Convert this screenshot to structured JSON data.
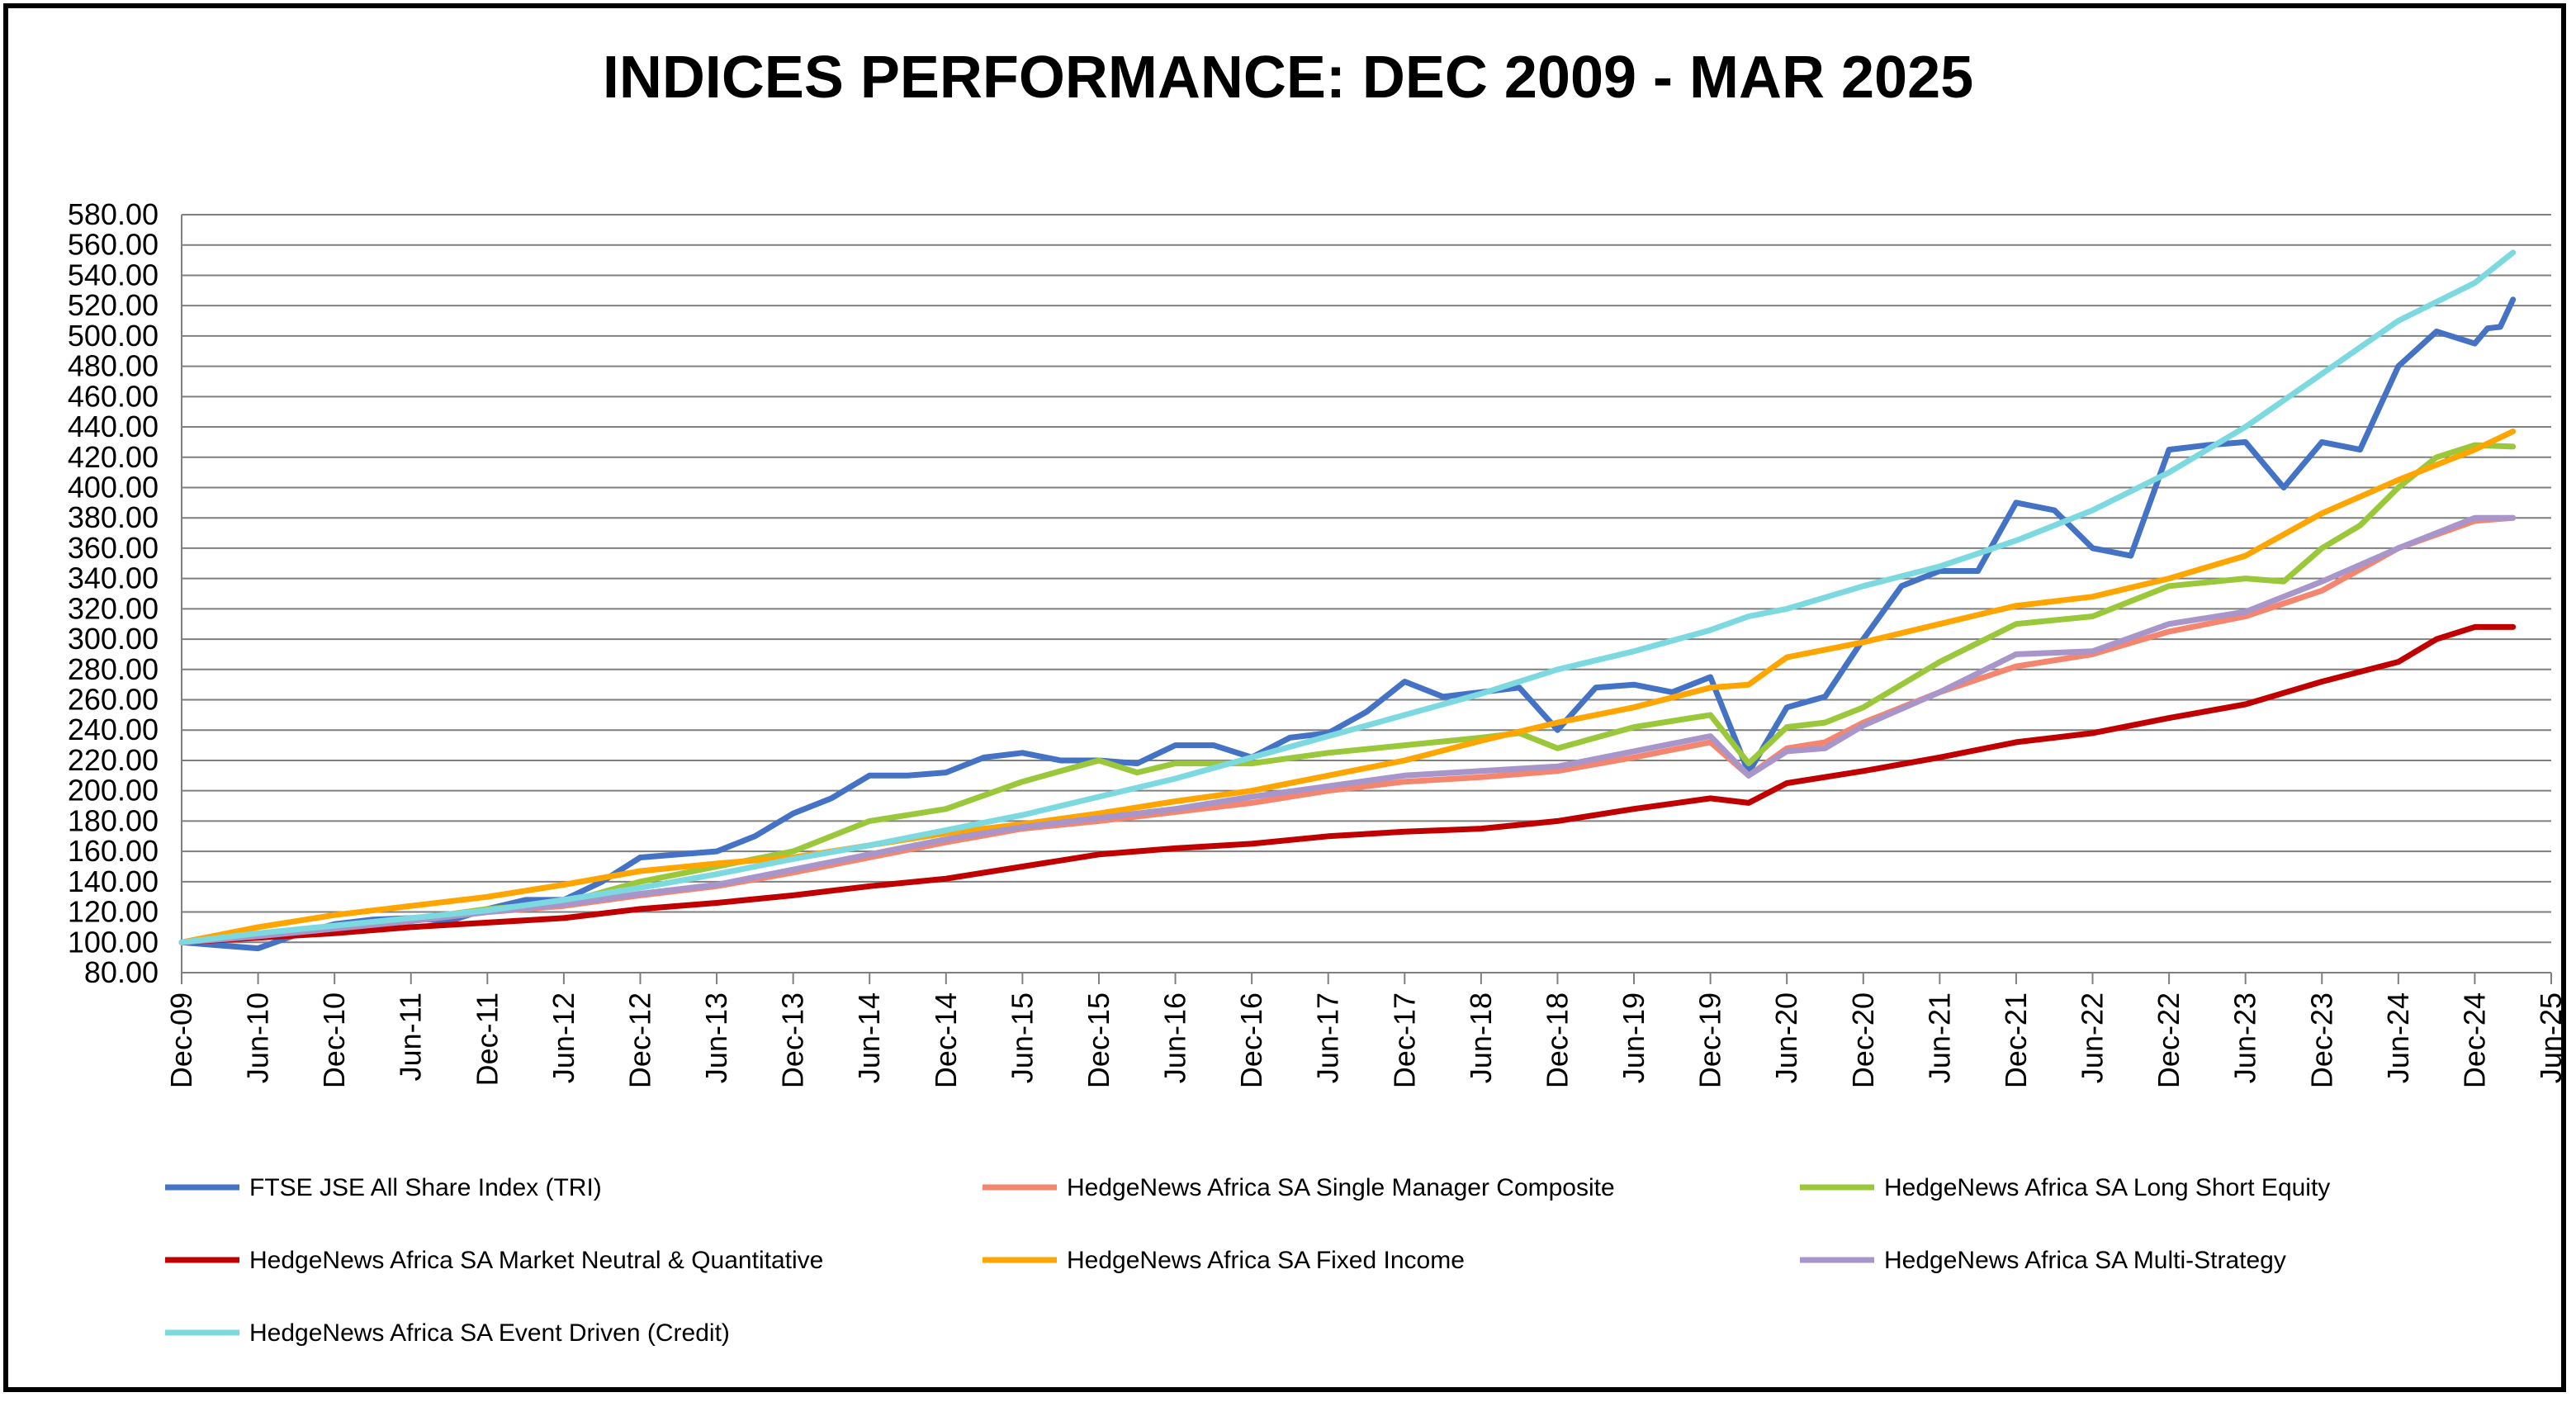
{
  "chart_data": {
    "type": "line",
    "title": "INDICES PERFORMANCE: DEC 2009 - MAR 2025",
    "xlabel": "",
    "ylabel": "",
    "ylim": [
      80,
      580
    ],
    "yticks": [
      "580.00",
      "560.00",
      "540.00",
      "520.00",
      "500.00",
      "480.00",
      "460.00",
      "440.00",
      "420.00",
      "400.00",
      "380.00",
      "360.00",
      "340.00",
      "320.00",
      "300.00",
      "280.00",
      "260.00",
      "240.00",
      "220.00",
      "200.00",
      "180.00",
      "160.00",
      "140.00",
      "120.00",
      "100.00",
      "80.00"
    ],
    "xticks": [
      "Dec-09",
      "Jun-10",
      "Dec-10",
      "Jun-11",
      "Dec-11",
      "Jun-12",
      "Dec-12",
      "Jun-13",
      "Dec-13",
      "Jun-14",
      "Dec-14",
      "Jun-15",
      "Dec-15",
      "Jun-16",
      "Dec-16",
      "Jun-17",
      "Dec-17",
      "Jun-18",
      "Dec-18",
      "Jun-19",
      "Dec-19",
      "Jun-20",
      "Dec-20",
      "Jun-21",
      "Dec-21",
      "Jun-22",
      "Dec-22",
      "Jun-23",
      "Dec-23",
      "Jun-24",
      "Dec-24",
      "Jun-25"
    ],
    "grid": true,
    "legend_position": "bottom",
    "series": [
      {
        "name": "FTSE JSE All Share Index (TRI)",
        "color": "#4472C4",
        "points": [
          [
            "Dec-09",
            100
          ],
          [
            "Mar-10",
            98
          ],
          [
            "Jun-10",
            96
          ],
          [
            "Sep-10",
            105
          ],
          [
            "Dec-10",
            112
          ],
          [
            "Mar-11",
            115
          ],
          [
            "Jun-11",
            116
          ],
          [
            "Sep-11",
            114
          ],
          [
            "Dec-11",
            122
          ],
          [
            "Mar-12",
            128
          ],
          [
            "Jun-12",
            128
          ],
          [
            "Sep-12",
            140
          ],
          [
            "Dec-12",
            156
          ],
          [
            "Mar-13",
            158
          ],
          [
            "Jun-13",
            160
          ],
          [
            "Sep-13",
            170
          ],
          [
            "Dec-13",
            185
          ],
          [
            "Mar-14",
            195
          ],
          [
            "Jun-14",
            210
          ],
          [
            "Sep-14",
            210
          ],
          [
            "Dec-14",
            212
          ],
          [
            "Mar-15",
            222
          ],
          [
            "Jun-15",
            225
          ],
          [
            "Sep-15",
            220
          ],
          [
            "Dec-15",
            220
          ],
          [
            "Mar-16",
            218
          ],
          [
            "Jun-16",
            230
          ],
          [
            "Sep-16",
            230
          ],
          [
            "Dec-16",
            222
          ],
          [
            "Mar-17",
            235
          ],
          [
            "Jun-17",
            238
          ],
          [
            "Sep-17",
            252
          ],
          [
            "Dec-17",
            272
          ],
          [
            "Mar-18",
            262
          ],
          [
            "Jun-18",
            265
          ],
          [
            "Sep-18",
            268
          ],
          [
            "Dec-18",
            240
          ],
          [
            "Mar-19",
            268
          ],
          [
            "Jun-19",
            270
          ],
          [
            "Sep-19",
            265
          ],
          [
            "Dec-19",
            275
          ],
          [
            "Mar-20",
            212
          ],
          [
            "Jun-20",
            255
          ],
          [
            "Sep-20",
            262
          ],
          [
            "Dec-20",
            300
          ],
          [
            "Mar-21",
            335
          ],
          [
            "Jun-21",
            345
          ],
          [
            "Sep-21",
            345
          ],
          [
            "Dec-21",
            390
          ],
          [
            "Mar-22",
            385
          ],
          [
            "Jun-22",
            360
          ],
          [
            "Sep-22",
            355
          ],
          [
            "Dec-22",
            425
          ],
          [
            "Mar-23",
            428
          ],
          [
            "Jun-23",
            430
          ],
          [
            "Sep-23",
            400
          ],
          [
            "Dec-23",
            430
          ],
          [
            "Mar-24",
            425
          ],
          [
            "Jun-24",
            480
          ],
          [
            "Sep-24",
            503
          ],
          [
            "Dec-24",
            495
          ],
          [
            "Jan-25",
            505
          ],
          [
            "Feb-25",
            506
          ],
          [
            "Mar-25",
            524
          ]
        ]
      },
      {
        "name": "HedgeNews Africa SA Single Manager Composite",
        "color": "#F4866F",
        "points": [
          [
            "Dec-09",
            100
          ],
          [
            "Jun-10",
            104
          ],
          [
            "Dec-10",
            109
          ],
          [
            "Jun-11",
            114
          ],
          [
            "Dec-11",
            120
          ],
          [
            "Jun-12",
            124
          ],
          [
            "Dec-12",
            131
          ],
          [
            "Jun-13",
            137
          ],
          [
            "Dec-13",
            146
          ],
          [
            "Jun-14",
            156
          ],
          [
            "Dec-14",
            166
          ],
          [
            "Jun-15",
            175
          ],
          [
            "Dec-15",
            180
          ],
          [
            "Jun-16",
            186
          ],
          [
            "Dec-16",
            192
          ],
          [
            "Jun-17",
            200
          ],
          [
            "Dec-17",
            206
          ],
          [
            "Jun-18",
            209
          ],
          [
            "Dec-18",
            213
          ],
          [
            "Jun-19",
            222
          ],
          [
            "Dec-19",
            232
          ],
          [
            "Mar-20",
            210
          ],
          [
            "Jun-20",
            228
          ],
          [
            "Sep-20",
            232
          ],
          [
            "Dec-20",
            245
          ],
          [
            "Jun-21",
            265
          ],
          [
            "Dec-21",
            282
          ],
          [
            "Jun-22",
            290
          ],
          [
            "Dec-22",
            305
          ],
          [
            "Jun-23",
            315
          ],
          [
            "Dec-23",
            332
          ],
          [
            "Jun-24",
            360
          ],
          [
            "Dec-24",
            378
          ],
          [
            "Mar-25",
            380
          ]
        ]
      },
      {
        "name": "HedgeNews Africa SA Long Short Equity",
        "color": "#9BC83A",
        "points": [
          [
            "Dec-09",
            100
          ],
          [
            "Jun-10",
            105
          ],
          [
            "Dec-10",
            110
          ],
          [
            "Jun-11",
            115
          ],
          [
            "Dec-11",
            122
          ],
          [
            "Jun-12",
            126
          ],
          [
            "Dec-12",
            140
          ],
          [
            "Jun-13",
            150
          ],
          [
            "Dec-13",
            160
          ],
          [
            "Jun-14",
            180
          ],
          [
            "Dec-14",
            188
          ],
          [
            "Jun-15",
            206
          ],
          [
            "Dec-15",
            220
          ],
          [
            "Mar-16",
            212
          ],
          [
            "Jun-16",
            218
          ],
          [
            "Dec-16",
            218
          ],
          [
            "Jun-17",
            225
          ],
          [
            "Dec-17",
            230
          ],
          [
            "Jun-18",
            235
          ],
          [
            "Sep-18",
            238
          ],
          [
            "Dec-18",
            228
          ],
          [
            "Jun-19",
            242
          ],
          [
            "Dec-19",
            250
          ],
          [
            "Mar-20",
            218
          ],
          [
            "Jun-20",
            242
          ],
          [
            "Sep-20",
            245
          ],
          [
            "Dec-20",
            255
          ],
          [
            "Jun-21",
            285
          ],
          [
            "Dec-21",
            310
          ],
          [
            "Jun-22",
            315
          ],
          [
            "Dec-22",
            335
          ],
          [
            "Jun-23",
            340
          ],
          [
            "Sep-23",
            338
          ],
          [
            "Dec-23",
            360
          ],
          [
            "Mar-24",
            375
          ],
          [
            "Jun-24",
            400
          ],
          [
            "Sep-24",
            420
          ],
          [
            "Dec-24",
            428
          ],
          [
            "Mar-25",
            427
          ]
        ]
      },
      {
        "name": "HedgeNews Africa SA Market Neutral & Quantitative",
        "color": "#C00000",
        "points": [
          [
            "Dec-09",
            100
          ],
          [
            "Jun-10",
            103
          ],
          [
            "Dec-10",
            106
          ],
          [
            "Jun-11",
            110
          ],
          [
            "Dec-11",
            113
          ],
          [
            "Jun-12",
            116
          ],
          [
            "Dec-12",
            122
          ],
          [
            "Jun-13",
            126
          ],
          [
            "Dec-13",
            131
          ],
          [
            "Jun-14",
            137
          ],
          [
            "Dec-14",
            142
          ],
          [
            "Jun-15",
            150
          ],
          [
            "Dec-15",
            158
          ],
          [
            "Jun-16",
            162
          ],
          [
            "Dec-16",
            165
          ],
          [
            "Jun-17",
            170
          ],
          [
            "Dec-17",
            173
          ],
          [
            "Jun-18",
            175
          ],
          [
            "Dec-18",
            180
          ],
          [
            "Jun-19",
            188
          ],
          [
            "Dec-19",
            195
          ],
          [
            "Mar-20",
            192
          ],
          [
            "Jun-20",
            205
          ],
          [
            "Dec-20",
            213
          ],
          [
            "Jun-21",
            222
          ],
          [
            "Dec-21",
            232
          ],
          [
            "Jun-22",
            238
          ],
          [
            "Dec-22",
            248
          ],
          [
            "Jun-23",
            257
          ],
          [
            "Dec-23",
            272
          ],
          [
            "Jun-24",
            285
          ],
          [
            "Sep-24",
            300
          ],
          [
            "Dec-24",
            308
          ],
          [
            "Mar-25",
            308
          ]
        ]
      },
      {
        "name": "HedgeNews Africa SA Fixed Income",
        "color": "#FFA500",
        "points": [
          [
            "Dec-09",
            100
          ],
          [
            "Jun-10",
            110
          ],
          [
            "Dec-10",
            118
          ],
          [
            "Jun-11",
            124
          ],
          [
            "Dec-11",
            130
          ],
          [
            "Jun-12",
            138
          ],
          [
            "Dec-12",
            147
          ],
          [
            "Jun-13",
            152
          ],
          [
            "Dec-13",
            156
          ],
          [
            "Jun-14",
            164
          ],
          [
            "Dec-14",
            172
          ],
          [
            "Jun-15",
            178
          ],
          [
            "Dec-15",
            185
          ],
          [
            "Jun-16",
            193
          ],
          [
            "Dec-16",
            200
          ],
          [
            "Jun-17",
            210
          ],
          [
            "Dec-17",
            220
          ],
          [
            "Jun-18",
            233
          ],
          [
            "Dec-18",
            245
          ],
          [
            "Jun-19",
            255
          ],
          [
            "Dec-19",
            268
          ],
          [
            "Mar-20",
            270
          ],
          [
            "Jun-20",
            288
          ],
          [
            "Dec-20",
            298
          ],
          [
            "Jun-21",
            310
          ],
          [
            "Dec-21",
            322
          ],
          [
            "Jun-22",
            328
          ],
          [
            "Dec-22",
            340
          ],
          [
            "Jun-23",
            355
          ],
          [
            "Dec-23",
            383
          ],
          [
            "Jun-24",
            405
          ],
          [
            "Dec-24",
            425
          ],
          [
            "Mar-25",
            437
          ]
        ]
      },
      {
        "name": "HedgeNews Africa SA Multi-Strategy",
        "color": "#A895C9",
        "points": [
          [
            "Dec-09",
            100
          ],
          [
            "Jun-10",
            104
          ],
          [
            "Dec-10",
            109
          ],
          [
            "Jun-11",
            114
          ],
          [
            "Dec-11",
            120
          ],
          [
            "Jun-12",
            125
          ],
          [
            "Dec-12",
            132
          ],
          [
            "Jun-13",
            138
          ],
          [
            "Dec-13",
            148
          ],
          [
            "Jun-14",
            158
          ],
          [
            "Dec-14",
            168
          ],
          [
            "Jun-15",
            176
          ],
          [
            "Dec-15",
            182
          ],
          [
            "Jun-16",
            188
          ],
          [
            "Dec-16",
            196
          ],
          [
            "Jun-17",
            203
          ],
          [
            "Dec-17",
            210
          ],
          [
            "Jun-18",
            213
          ],
          [
            "Dec-18",
            216
          ],
          [
            "Jun-19",
            226
          ],
          [
            "Dec-19",
            236
          ],
          [
            "Mar-20",
            210
          ],
          [
            "Jun-20",
            226
          ],
          [
            "Sep-20",
            228
          ],
          [
            "Dec-20",
            243
          ],
          [
            "Jun-21",
            265
          ],
          [
            "Dec-21",
            290
          ],
          [
            "Jun-22",
            292
          ],
          [
            "Dec-22",
            310
          ],
          [
            "Jun-23",
            318
          ],
          [
            "Dec-23",
            338
          ],
          [
            "Jun-24",
            360
          ],
          [
            "Dec-24",
            380
          ],
          [
            "Mar-25",
            380
          ]
        ]
      },
      {
        "name": "HedgeNews Africa SA Event Driven (Credit)",
        "color": "#7DD9E0",
        "points": [
          [
            "Dec-09",
            100
          ],
          [
            "Jun-10",
            106
          ],
          [
            "Dec-10",
            111
          ],
          [
            "Jun-11",
            116
          ],
          [
            "Dec-11",
            121
          ],
          [
            "Jun-12",
            128
          ],
          [
            "Dec-12",
            136
          ],
          [
            "Jun-13",
            145
          ],
          [
            "Dec-13",
            155
          ],
          [
            "Jun-14",
            164
          ],
          [
            "Dec-14",
            174
          ],
          [
            "Jun-15",
            184
          ],
          [
            "Dec-15",
            196
          ],
          [
            "Jun-16",
            208
          ],
          [
            "Dec-16",
            222
          ],
          [
            "Jun-17",
            236
          ],
          [
            "Dec-17",
            250
          ],
          [
            "Jun-18",
            264
          ],
          [
            "Dec-18",
            280
          ],
          [
            "Jun-19",
            292
          ],
          [
            "Dec-19",
            306
          ],
          [
            "Mar-20",
            315
          ],
          [
            "Jun-20",
            320
          ],
          [
            "Dec-20",
            335
          ],
          [
            "Jun-21",
            348
          ],
          [
            "Dec-21",
            365
          ],
          [
            "Jun-22",
            385
          ],
          [
            "Dec-22",
            410
          ],
          [
            "Jun-23",
            440
          ],
          [
            "Dec-23",
            475
          ],
          [
            "Jun-24",
            510
          ],
          [
            "Dec-24",
            535
          ],
          [
            "Mar-25",
            555
          ]
        ]
      }
    ]
  }
}
